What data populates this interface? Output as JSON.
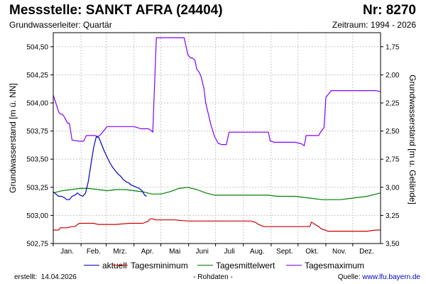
{
  "header": {
    "title": "Messstelle: SANKT AFRA (24404)",
    "nr": "Nr: 8270",
    "aquifer": "Grundwasserleiter: Quartär",
    "period": "Zeitraum: 1994 - 2026"
  },
  "footer": {
    "created_label": "erstellt:",
    "created_date": "14.04.2026",
    "raw_data": "- Rohdaten -",
    "source_label": "Quelle:",
    "source_link": "www.lfu.bayern.de"
  },
  "chart_data": {
    "type": "line",
    "ylabel": "Grundwasserstand [m ü. NN]",
    "y2label": "Grundwasserstand [m u. Gelände]",
    "ylim": [
      502.75,
      504.625
    ],
    "yticks": [
      "502,75",
      "503,00",
      "503,25",
      "503,50",
      "503,75",
      "504,00",
      "504,25",
      "504,50"
    ],
    "ytick_values": [
      502.75,
      503.0,
      503.25,
      503.5,
      503.75,
      504.0,
      504.25,
      504.5
    ],
    "y2ticks": [
      "1,75",
      "2,00",
      "2,25",
      "2,50",
      "2,75",
      "3,00",
      "3,25",
      "3,50"
    ],
    "y2tick_values": [
      1.75,
      2.0,
      2.25,
      2.5,
      2.75,
      3.0,
      3.25,
      3.5
    ],
    "y2_datum": 506.25,
    "xlim": [
      0,
      365
    ],
    "months": [
      "Jan.",
      "Feb.",
      "Mrz.",
      "Apr.",
      "Mai",
      "Juni",
      "Juli",
      "Aug.",
      "Sept.",
      "Okt.",
      "Nov.",
      "Dez."
    ],
    "month_starts": [
      0,
      31,
      59,
      90,
      120,
      151,
      181,
      212,
      243,
      273,
      304,
      334
    ],
    "grid": true,
    "legend_position": "bottom",
    "series": [
      {
        "name": "aktuell",
        "color": "#0000cc",
        "x": [
          0,
          3,
          6,
          9,
          12,
          15,
          18,
          21,
          24,
          27,
          30,
          33,
          36,
          39,
          42,
          45,
          48,
          51,
          54,
          57,
          60,
          63,
          66,
          69,
          72,
          75,
          78,
          81,
          84,
          87,
          90,
          93,
          96,
          99,
          102,
          104
        ],
        "y": [
          503.21,
          503.19,
          503.17,
          503.17,
          503.16,
          503.14,
          503.14,
          503.17,
          503.18,
          503.2,
          503.18,
          503.17,
          503.2,
          503.3,
          503.45,
          503.6,
          503.7,
          503.69,
          503.63,
          503.57,
          503.52,
          503.47,
          503.43,
          503.4,
          503.37,
          503.35,
          503.32,
          503.3,
          503.29,
          503.27,
          503.26,
          503.25,
          503.24,
          503.22,
          503.18,
          503.17
        ]
      },
      {
        "name": "Tagesminimum",
        "color": "#cc0000",
        "x": [
          0,
          6,
          8,
          16,
          20,
          24,
          29,
          32,
          36,
          45,
          50,
          55,
          60,
          70,
          85,
          100,
          106,
          108,
          111,
          114,
          118,
          125,
          135,
          150,
          165,
          180,
          195,
          210,
          220,
          225,
          229,
          232,
          235,
          240,
          250,
          260,
          270,
          275,
          286,
          288,
          292,
          296,
          299,
          303,
          306,
          310,
          320,
          330,
          340,
          350,
          360,
          365
        ],
        "y": [
          502.87,
          502.87,
          502.89,
          502.89,
          502.9,
          502.9,
          502.93,
          502.93,
          502.93,
          502.93,
          502.92,
          502.92,
          502.92,
          502.92,
          502.93,
          502.93,
          502.95,
          502.97,
          502.97,
          502.96,
          502.96,
          502.96,
          502.96,
          502.95,
          502.95,
          502.95,
          502.95,
          502.95,
          502.95,
          502.94,
          502.92,
          502.91,
          502.9,
          502.9,
          502.9,
          502.9,
          502.9,
          502.9,
          502.9,
          502.94,
          502.92,
          502.9,
          502.88,
          502.87,
          502.86,
          502.86,
          502.86,
          502.86,
          502.86,
          502.86,
          502.87,
          502.87
        ]
      },
      {
        "name": "Tagesmittelwert",
        "color": "#008000",
        "x": [
          0,
          10,
          20,
          30,
          40,
          50,
          60,
          70,
          80,
          90,
          100,
          110,
          120,
          130,
          140,
          150,
          160,
          170,
          180,
          190,
          200,
          210,
          220,
          230,
          240,
          250,
          260,
          270,
          280,
          290,
          300,
          310,
          320,
          330,
          340,
          350,
          360,
          365
        ],
        "y": [
          503.2,
          503.22,
          503.23,
          503.24,
          503.24,
          503.23,
          503.22,
          503.23,
          503.23,
          503.22,
          503.21,
          503.19,
          503.19,
          503.21,
          503.24,
          503.25,
          503.23,
          503.2,
          503.18,
          503.18,
          503.18,
          503.18,
          503.18,
          503.18,
          503.18,
          503.17,
          503.17,
          503.17,
          503.16,
          503.15,
          503.14,
          503.14,
          503.14,
          503.15,
          503.16,
          503.17,
          503.19,
          503.2
        ]
      },
      {
        "name": "Tagesmaximum",
        "color": "#8000ff",
        "x": [
          0,
          2,
          4,
          6,
          8,
          10,
          12,
          14,
          16,
          18,
          21,
          29,
          31,
          34,
          37,
          44,
          47,
          50,
          53,
          60,
          70,
          80,
          90,
          98,
          104,
          106,
          108,
          110,
          111,
          115,
          120,
          130,
          140,
          146,
          150,
          153,
          155,
          158,
          160,
          163,
          165,
          168,
          170,
          173,
          176,
          180,
          184,
          188,
          190,
          193,
          196,
          200,
          210,
          220,
          230,
          236,
          240,
          242,
          244,
          246,
          250,
          260,
          265,
          270,
          275,
          276,
          278,
          280,
          282,
          290,
          296,
          298,
          300,
          302,
          304,
          310,
          320,
          330,
          340,
          350,
          360,
          365
        ],
        "y": [
          504.07,
          504.02,
          503.97,
          503.92,
          503.9,
          503.9,
          503.88,
          503.85,
          503.82,
          503.82,
          503.67,
          503.66,
          503.66,
          503.66,
          503.71,
          503.71,
          503.71,
          503.7,
          503.72,
          503.79,
          503.79,
          503.79,
          503.79,
          503.77,
          503.77,
          503.77,
          503.76,
          503.75,
          503.74,
          504.58,
          504.58,
          504.58,
          504.58,
          504.58,
          504.43,
          504.4,
          504.4,
          504.38,
          504.3,
          504.27,
          504.23,
          504.13,
          504.0,
          503.9,
          503.8,
          503.7,
          503.64,
          503.63,
          503.63,
          503.63,
          503.74,
          503.74,
          503.74,
          503.74,
          503.74,
          503.74,
          503.74,
          503.66,
          503.66,
          503.65,
          503.65,
          503.65,
          503.65,
          503.65,
          503.64,
          503.64,
          503.63,
          503.62,
          503.71,
          503.71,
          503.71,
          503.74,
          503.76,
          503.78,
          504.05,
          504.11,
          504.11,
          504.11,
          504.11,
          504.11,
          504.11,
          504.1
        ]
      }
    ]
  }
}
